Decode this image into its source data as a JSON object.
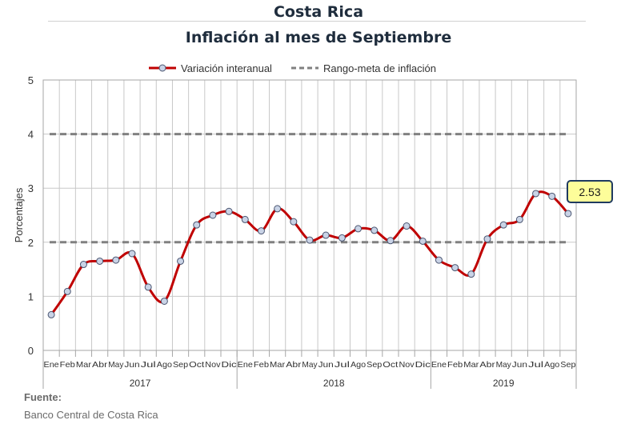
{
  "header": {
    "title": "Costa Rica",
    "subtitle": "Inflación al mes de Septiembre"
  },
  "footer": {
    "source_label": "Fuente:",
    "source_value": "Banco Central de Costa Rica"
  },
  "chart_data": {
    "type": "line",
    "ylabel": "Porcentajes",
    "ylim": [
      0,
      5
    ],
    "yticks": [
      0,
      1,
      2,
      3,
      4,
      5
    ],
    "grid": true,
    "legend_position": "top",
    "colors": {
      "series": "#c00000",
      "marker_fill": "#c9d3e6",
      "marker_edge": "#4a5570",
      "target": "#808080",
      "grid": "#c8c8c8"
    },
    "categories": [
      "Ene",
      "Feb",
      "Mar",
      "Abr",
      "May",
      "Jun",
      "Jul",
      "Ago",
      "Sep",
      "Oct",
      "Nov",
      "Dic",
      "Ene",
      "Feb",
      "Mar",
      "Abr",
      "May",
      "Jun",
      "Jul",
      "Ago",
      "Sep",
      "Oct",
      "Nov",
      "Dic",
      "Ene",
      "Feb",
      "Mar",
      "Abr",
      "May",
      "Jun",
      "Jul",
      "Ago",
      "Sep"
    ],
    "years": [
      {
        "label": "2017",
        "count": 12
      },
      {
        "label": "2018",
        "count": 12
      },
      {
        "label": "2019",
        "count": 9
      }
    ],
    "series": [
      {
        "name": "Variación interanual",
        "values": [
          0.66,
          1.09,
          1.59,
          1.65,
          1.67,
          1.79,
          1.17,
          0.91,
          1.65,
          2.32,
          2.5,
          2.57,
          2.42,
          2.21,
          2.62,
          2.38,
          2.04,
          2.13,
          2.08,
          2.25,
          2.22,
          2.03,
          2.3,
          2.02,
          1.67,
          1.53,
          1.41,
          2.06,
          2.32,
          2.42,
          2.9,
          2.85,
          2.53
        ]
      },
      {
        "name": "Rango-meta de inflación",
        "bounds": [
          2,
          4
        ]
      }
    ],
    "annotation": {
      "label": "2.53"
    }
  }
}
